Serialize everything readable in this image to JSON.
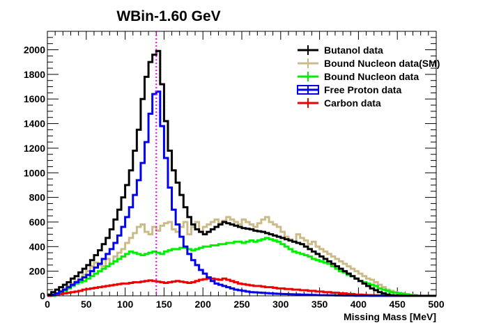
{
  "chart_data": {
    "type": "line",
    "style": "step-histogram",
    "title": "WBin-1.60 GeV",
    "xlabel": "Missing Mass [MeV]",
    "ylabel": "",
    "xlim": [
      0,
      500
    ],
    "ylim": [
      0,
      2150
    ],
    "x_ticks": [
      0,
      50,
      100,
      150,
      200,
      250,
      300,
      350,
      400,
      450,
      500
    ],
    "y_ticks": [
      0,
      200,
      400,
      600,
      800,
      1000,
      1200,
      1400,
      1600,
      1800,
      2000
    ],
    "bin_width": 5,
    "grid": false,
    "legend_position": "top-right",
    "reference_line": {
      "x": 140,
      "color": "#ff00ff",
      "style": "dotted"
    },
    "series": [
      {
        "name": "Butanol data",
        "color": "#000000",
        "x": [
          0,
          5,
          10,
          15,
          20,
          25,
          30,
          35,
          40,
          45,
          50,
          55,
          60,
          65,
          70,
          75,
          80,
          85,
          90,
          95,
          100,
          105,
          110,
          115,
          120,
          125,
          130,
          135,
          140,
          145,
          150,
          155,
          160,
          165,
          170,
          175,
          180,
          185,
          190,
          195,
          200,
          205,
          210,
          215,
          220,
          225,
          230,
          235,
          240,
          245,
          250,
          255,
          260,
          265,
          270,
          275,
          280,
          285,
          290,
          295,
          300,
          305,
          310,
          315,
          320,
          325,
          330,
          335,
          340,
          345,
          350,
          355,
          360,
          365,
          370,
          375,
          380,
          385,
          390,
          395,
          400,
          405,
          410,
          415,
          420,
          425,
          430,
          435,
          440,
          445,
          450,
          455,
          460,
          465,
          470,
          475,
          480,
          485,
          490,
          495
        ],
        "values": [
          10,
          30,
          50,
          70,
          90,
          110,
          140,
          160,
          190,
          220,
          250,
          290,
          330,
          370,
          420,
          470,
          540,
          620,
          700,
          800,
          900,
          1020,
          1180,
          1350,
          1600,
          1780,
          1900,
          1960,
          1990,
          1720,
          1420,
          1180,
          1020,
          920,
          820,
          720,
          640,
          580,
          540,
          520,
          500,
          520,
          540,
          560,
          580,
          600,
          590,
          580,
          570,
          560,
          550,
          545,
          540,
          530,
          525,
          520,
          510,
          500,
          490,
          480,
          470,
          460,
          450,
          440,
          430,
          420,
          400,
          380,
          360,
          340,
          320,
          300,
          280,
          260,
          240,
          220,
          200,
          180,
          160,
          140,
          120,
          100,
          80,
          60,
          45,
          30,
          20,
          10,
          5,
          3,
          2,
          1,
          0,
          0,
          0,
          0,
          0,
          0,
          0,
          0
        ]
      },
      {
        "name": "Bound Nucleon data(SM)",
        "color": "#ccbb88",
        "x": [
          0,
          5,
          10,
          15,
          20,
          25,
          30,
          35,
          40,
          45,
          50,
          55,
          60,
          65,
          70,
          75,
          80,
          85,
          90,
          95,
          100,
          105,
          110,
          115,
          120,
          125,
          130,
          135,
          140,
          145,
          150,
          155,
          160,
          165,
          170,
          175,
          180,
          185,
          190,
          195,
          200,
          205,
          210,
          215,
          220,
          225,
          230,
          235,
          240,
          245,
          250,
          255,
          260,
          265,
          270,
          275,
          280,
          285,
          290,
          295,
          300,
          305,
          310,
          315,
          320,
          325,
          330,
          335,
          340,
          345,
          350,
          355,
          360,
          365,
          370,
          375,
          380,
          385,
          390,
          395,
          400,
          405,
          410,
          415,
          420,
          425,
          430,
          435,
          440,
          445,
          450,
          455,
          460,
          465,
          470,
          475,
          480,
          485,
          490,
          495
        ],
        "values": [
          0,
          0,
          20,
          40,
          60,
          80,
          100,
          120,
          140,
          170,
          200,
          240,
          270,
          250,
          240,
          300,
          260,
          320,
          350,
          380,
          430,
          470,
          510,
          560,
          580,
          520,
          500,
          560,
          530,
          570,
          590,
          600,
          540,
          520,
          560,
          600,
          500,
          560,
          600,
          520,
          560,
          580,
          600,
          620,
          590,
          610,
          640,
          620,
          600,
          580,
          620,
          600,
          580,
          560,
          590,
          620,
          640,
          600,
          580,
          560,
          520,
          480,
          460,
          440,
          500,
          470,
          450,
          420,
          440,
          400,
          380,
          360,
          340,
          320,
          300,
          280,
          260,
          240,
          220,
          200,
          180,
          160,
          140,
          130,
          110,
          90,
          70,
          50,
          40,
          30,
          25,
          20,
          15,
          10,
          5,
          0,
          0,
          0,
          0,
          0
        ]
      },
      {
        "name": "Bound Nucleon data",
        "color": "#00ee00",
        "x": [
          0,
          5,
          10,
          15,
          20,
          25,
          30,
          35,
          40,
          45,
          50,
          55,
          60,
          65,
          70,
          75,
          80,
          85,
          90,
          95,
          100,
          105,
          110,
          115,
          120,
          125,
          130,
          135,
          140,
          145,
          150,
          155,
          160,
          165,
          170,
          175,
          180,
          185,
          190,
          195,
          200,
          205,
          210,
          215,
          220,
          225,
          230,
          235,
          240,
          245,
          250,
          255,
          260,
          265,
          270,
          275,
          280,
          285,
          290,
          295,
          300,
          305,
          310,
          315,
          320,
          325,
          330,
          335,
          340,
          345,
          350,
          355,
          360,
          365,
          370,
          375,
          380,
          385,
          390,
          395,
          400,
          405,
          410,
          415,
          420,
          425,
          430,
          435,
          440,
          445,
          450,
          455,
          460,
          465,
          470,
          475,
          480,
          485,
          490,
          495
        ],
        "values": [
          0,
          0,
          10,
          20,
          40,
          60,
          80,
          100,
          110,
          120,
          140,
          160,
          180,
          200,
          220,
          240,
          260,
          280,
          300,
          320,
          340,
          360,
          350,
          340,
          330,
          340,
          350,
          360,
          350,
          340,
          360,
          370,
          380,
          380,
          390,
          390,
          380,
          370,
          380,
          390,
          400,
          400,
          410,
          410,
          420,
          420,
          430,
          430,
          440,
          440,
          430,
          440,
          450,
          440,
          450,
          460,
          470,
          460,
          450,
          440,
          420,
          400,
          380,
          360,
          350,
          340,
          330,
          320,
          300,
          290,
          280,
          270,
          260,
          240,
          220,
          200,
          190,
          170,
          160,
          140,
          120,
          110,
          100,
          90,
          80,
          60,
          50,
          40,
          30,
          25,
          20,
          15,
          10,
          5,
          5,
          0,
          0,
          0,
          0,
          0
        ]
      },
      {
        "name": "Free Proton data",
        "color": "#0000ee",
        "x": [
          0,
          5,
          10,
          15,
          20,
          25,
          30,
          35,
          40,
          45,
          50,
          55,
          60,
          65,
          70,
          75,
          80,
          85,
          90,
          95,
          100,
          105,
          110,
          115,
          120,
          125,
          130,
          135,
          140,
          145,
          150,
          155,
          160,
          165,
          170,
          175,
          180,
          185,
          190,
          195,
          200,
          205,
          210,
          215,
          220,
          225,
          230,
          235,
          240,
          245,
          250,
          255,
          260,
          265,
          270,
          275,
          280,
          285,
          290,
          295,
          300,
          305,
          310,
          315,
          320,
          325,
          330,
          335,
          340,
          345,
          350,
          355,
          360,
          365,
          370,
          375,
          380,
          385,
          390,
          395,
          400,
          405,
          410,
          415,
          420,
          425,
          430,
          435,
          440,
          445,
          450,
          455,
          460,
          465,
          470,
          475,
          480,
          485,
          490,
          495
        ],
        "values": [
          5,
          10,
          20,
          35,
          50,
          70,
          90,
          110,
          130,
          150,
          170,
          200,
          230,
          260,
          300,
          340,
          380,
          430,
          490,
          560,
          640,
          720,
          820,
          940,
          1080,
          1250,
          1480,
          1640,
          1660,
          1380,
          1120,
          880,
          700,
          580,
          480,
          400,
          340,
          290,
          250,
          210,
          180,
          150,
          120,
          100,
          90,
          80,
          70,
          60,
          50,
          45,
          40,
          35,
          30,
          28,
          26,
          24,
          22,
          20,
          18,
          16,
          15,
          14,
          13,
          12,
          11,
          10,
          9,
          8,
          7,
          6,
          5,
          5,
          4,
          4,
          3,
          3,
          2,
          2,
          2,
          1,
          1,
          1,
          1,
          0,
          0,
          0,
          0,
          0,
          0,
          0,
          0,
          0,
          0,
          0,
          0,
          0,
          0,
          0,
          0,
          0
        ]
      },
      {
        "name": "Carbon data",
        "color": "#ee0000",
        "x": [
          0,
          5,
          10,
          15,
          20,
          25,
          30,
          35,
          40,
          45,
          50,
          55,
          60,
          65,
          70,
          75,
          80,
          85,
          90,
          95,
          100,
          105,
          110,
          115,
          120,
          125,
          130,
          135,
          140,
          145,
          150,
          155,
          160,
          165,
          170,
          175,
          180,
          185,
          190,
          195,
          200,
          205,
          210,
          215,
          220,
          225,
          230,
          235,
          240,
          245,
          250,
          255,
          260,
          265,
          270,
          275,
          280,
          285,
          290,
          295,
          300,
          305,
          310,
          315,
          320,
          325,
          330,
          335,
          340,
          345,
          350,
          355,
          360,
          365,
          370,
          375,
          380,
          385,
          390,
          395,
          400,
          405,
          410,
          415,
          420,
          425,
          430,
          435,
          440,
          445,
          450,
          455,
          460,
          465,
          470,
          475,
          480,
          485,
          490,
          495
        ],
        "values": [
          0,
          5,
          10,
          15,
          20,
          25,
          30,
          35,
          40,
          50,
          55,
          60,
          65,
          70,
          75,
          80,
          85,
          90,
          95,
          100,
          100,
          105,
          110,
          110,
          115,
          120,
          125,
          120,
          115,
          110,
          105,
          110,
          115,
          120,
          115,
          110,
          105,
          110,
          120,
          130,
          135,
          140,
          140,
          135,
          130,
          140,
          130,
          120,
          110,
          100,
          95,
          90,
          85,
          80,
          80,
          75,
          70,
          70,
          65,
          60,
          60,
          55,
          55,
          50,
          50,
          45,
          45,
          40,
          40,
          35,
          35,
          30,
          30,
          25,
          25,
          20,
          20,
          15,
          15,
          10,
          10,
          8,
          6,
          5,
          4,
          3,
          2,
          1,
          0,
          0,
          0,
          0,
          0,
          0,
          0,
          0,
          0,
          0,
          0,
          0
        ]
      }
    ]
  }
}
